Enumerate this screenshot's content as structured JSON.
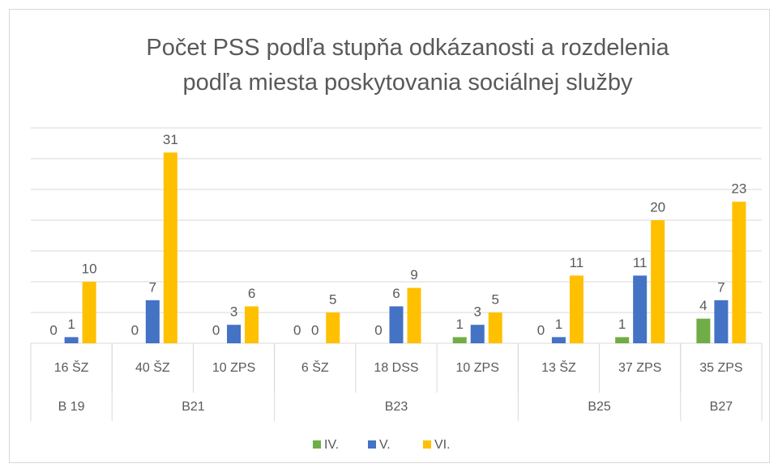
{
  "chart_data": {
    "type": "bar",
    "title": "Počet PSS podľa stupňa odkázanosti a rozdelenia podľa miesta poskytovania sociálnej služby",
    "categories": [
      "16 ŠZ",
      "40 ŠZ",
      "10 ZPS",
      "6 ŠZ",
      "18 DSS",
      "10 ZPS",
      "13 ŠZ",
      "37 ZPS",
      "35 ZPS"
    ],
    "groups": [
      {
        "label": "B 19",
        "size": 1
      },
      {
        "label": "B21",
        "size": 2
      },
      {
        "label": "B23",
        "size": 3
      },
      {
        "label": "B25",
        "size": 2
      },
      {
        "label": "B27",
        "size": 1
      }
    ],
    "series": [
      {
        "name": "IV.",
        "color": "#70ad47",
        "values": [
          0,
          0,
          0,
          0,
          0,
          1,
          0,
          1,
          4
        ]
      },
      {
        "name": "V.",
        "color": "#4472c4",
        "values": [
          1,
          7,
          3,
          0,
          6,
          3,
          1,
          11,
          7
        ]
      },
      {
        "name": "VI.",
        "color": "#ffc000",
        "values": [
          10,
          31,
          6,
          5,
          9,
          5,
          11,
          20,
          23
        ]
      }
    ],
    "ylim": [
      0,
      35
    ],
    "yticks": [
      0,
      5,
      10,
      15,
      20,
      25,
      30,
      35
    ],
    "grid": true,
    "legend": "bottom"
  }
}
